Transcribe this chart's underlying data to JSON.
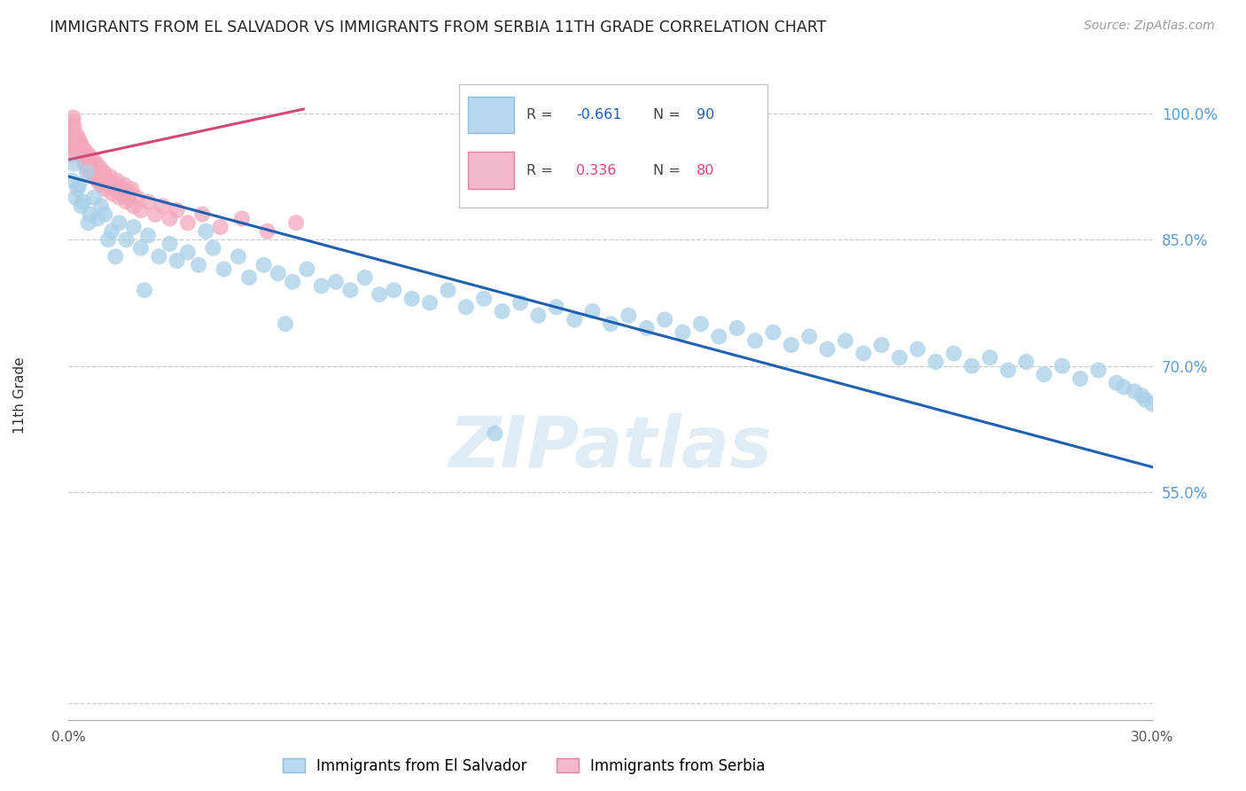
{
  "title": "IMMIGRANTS FROM EL SALVADOR VS IMMIGRANTS FROM SERBIA 11TH GRADE CORRELATION CHART",
  "source": "Source: ZipAtlas.com",
  "ylabel": "11th Grade",
  "yticks": [
    30.0,
    55.0,
    70.0,
    85.0,
    100.0
  ],
  "ytick_labels": [
    "",
    "55.0%",
    "70.0%",
    "85.0%",
    "100.0%"
  ],
  "xlim": [
    0.0,
    30.0
  ],
  "ylim": [
    28.0,
    105.0
  ],
  "color_blue": "#a8d0e8",
  "color_pink": "#f4a7bb",
  "line_color_blue": "#2060b0",
  "line_color_pink": "#d44878",
  "watermark": "ZIPatlas",
  "el_salvador_x": [
    0.1,
    0.2,
    0.3,
    0.4,
    0.5,
    0.6,
    0.7,
    0.8,
    0.9,
    1.0,
    1.2,
    1.4,
    1.6,
    1.8,
    2.0,
    2.2,
    2.5,
    2.8,
    3.0,
    3.3,
    3.6,
    4.0,
    4.3,
    4.7,
    5.0,
    5.4,
    5.8,
    6.2,
    6.6,
    7.0,
    7.4,
    7.8,
    8.2,
    8.6,
    9.0,
    9.5,
    10.0,
    10.5,
    11.0,
    11.5,
    12.0,
    12.5,
    13.0,
    13.5,
    14.0,
    14.5,
    15.0,
    15.5,
    16.0,
    16.5,
    17.0,
    17.5,
    18.0,
    18.5,
    19.0,
    19.5,
    20.0,
    20.5,
    21.0,
    21.5,
    22.0,
    22.5,
    23.0,
    23.5,
    24.0,
    24.5,
    25.0,
    25.5,
    26.0,
    26.5,
    27.0,
    27.5,
    28.0,
    28.5,
    29.0,
    29.2,
    29.5,
    29.7,
    29.8,
    30.0,
    0.15,
    0.25,
    0.35,
    0.55,
    1.1,
    1.3,
    2.1,
    3.8,
    6.0,
    11.8
  ],
  "el_salvador_y": [
    92.0,
    90.0,
    91.5,
    89.5,
    93.0,
    88.0,
    90.0,
    87.5,
    89.0,
    88.0,
    86.0,
    87.0,
    85.0,
    86.5,
    84.0,
    85.5,
    83.0,
    84.5,
    82.5,
    83.5,
    82.0,
    84.0,
    81.5,
    83.0,
    80.5,
    82.0,
    81.0,
    80.0,
    81.5,
    79.5,
    80.0,
    79.0,
    80.5,
    78.5,
    79.0,
    78.0,
    77.5,
    79.0,
    77.0,
    78.0,
    76.5,
    77.5,
    76.0,
    77.0,
    75.5,
    76.5,
    75.0,
    76.0,
    74.5,
    75.5,
    74.0,
    75.0,
    73.5,
    74.5,
    73.0,
    74.0,
    72.5,
    73.5,
    72.0,
    73.0,
    71.5,
    72.5,
    71.0,
    72.0,
    70.5,
    71.5,
    70.0,
    71.0,
    69.5,
    70.5,
    69.0,
    70.0,
    68.5,
    69.5,
    68.0,
    67.5,
    67.0,
    66.5,
    66.0,
    65.5,
    94.0,
    91.0,
    89.0,
    87.0,
    85.0,
    83.0,
    79.0,
    86.0,
    75.0,
    62.0
  ],
  "serbia_x": [
    0.05,
    0.08,
    0.1,
    0.12,
    0.15,
    0.18,
    0.2,
    0.22,
    0.25,
    0.28,
    0.3,
    0.33,
    0.35,
    0.38,
    0.4,
    0.43,
    0.45,
    0.48,
    0.5,
    0.55,
    0.6,
    0.65,
    0.7,
    0.75,
    0.8,
    0.85,
    0.9,
    0.95,
    1.0,
    1.1,
    1.2,
    1.3,
    1.4,
    1.5,
    1.6,
    1.7,
    1.8,
    1.9,
    2.0,
    2.2,
    2.4,
    2.6,
    2.8,
    3.0,
    3.3,
    3.7,
    4.2,
    4.8,
    5.5,
    6.3,
    0.07,
    0.09,
    0.11,
    0.13,
    0.16,
    0.19,
    0.23,
    0.27,
    0.32,
    0.36,
    0.42,
    0.47,
    0.53,
    0.58,
    0.63,
    0.68,
    0.73,
    0.78,
    0.83,
    0.88,
    0.93,
    0.98,
    1.05,
    1.15,
    1.25,
    1.35,
    1.45,
    1.55,
    1.65,
    1.75
  ],
  "serbia_y": [
    96.0,
    98.0,
    97.5,
    99.0,
    98.5,
    97.0,
    96.5,
    97.5,
    96.0,
    97.0,
    95.5,
    96.5,
    95.0,
    96.0,
    94.5,
    95.5,
    94.0,
    95.0,
    93.5,
    94.5,
    93.0,
    94.0,
    92.5,
    93.5,
    92.0,
    93.0,
    91.5,
    92.5,
    91.0,
    92.0,
    90.5,
    91.5,
    90.0,
    91.0,
    89.5,
    90.5,
    89.0,
    90.0,
    88.5,
    89.5,
    88.0,
    89.0,
    87.5,
    88.5,
    87.0,
    88.0,
    86.5,
    87.5,
    86.0,
    87.0,
    95.0,
    98.5,
    96.5,
    99.5,
    97.0,
    96.0,
    95.5,
    96.5,
    95.0,
    96.0,
    94.5,
    95.5,
    94.0,
    95.0,
    93.5,
    94.5,
    93.0,
    94.0,
    92.5,
    93.5,
    92.0,
    93.0,
    91.5,
    92.5,
    91.0,
    92.0,
    90.5,
    91.5,
    90.0,
    91.0
  ],
  "el_salvador_trend_x": [
    0.0,
    30.0
  ],
  "el_salvador_trend_y": [
    92.5,
    58.0
  ],
  "serbia_trend_x": [
    0.0,
    6.5
  ],
  "serbia_trend_y": [
    94.5,
    100.5
  ]
}
